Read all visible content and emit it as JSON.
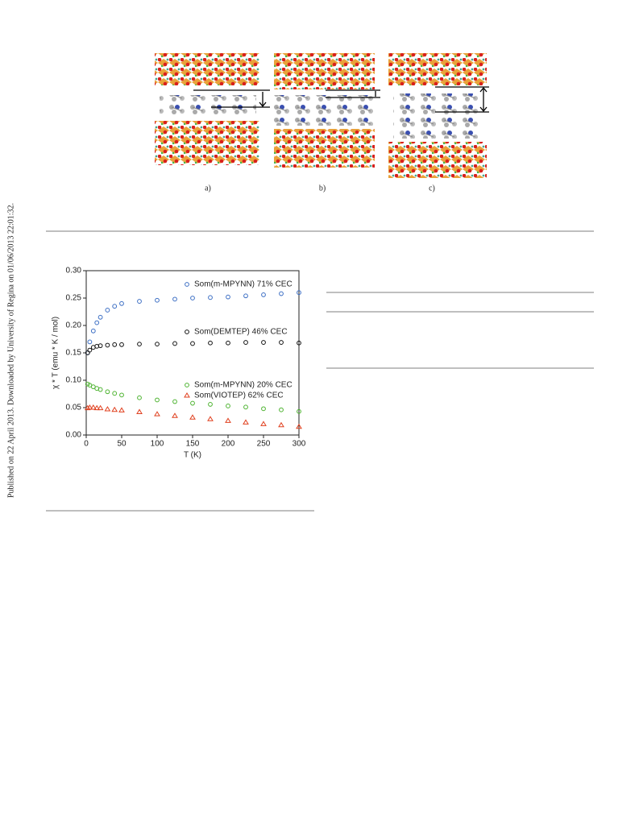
{
  "side_note": "Published on 22 April 2013. Downloaded by University of Regina on 01/06/2013 22:01:32.",
  "figure": {
    "labels": [
      "a)",
      "b)",
      "c)"
    ]
  },
  "chart_data": {
    "type": "scatter",
    "xlabel": "T (K)",
    "ylabel": "χ * T (emu * K / mol)",
    "x": [
      2,
      5,
      10,
      15,
      20,
      30,
      40,
      50,
      75,
      100,
      125,
      150,
      175,
      200,
      225,
      250,
      275,
      300
    ],
    "series": [
      {
        "name": "Som(m-MPYNN) 71% CEC",
        "color": "#3d6fc4",
        "marker": "circle",
        "values": [
          0.15,
          0.17,
          0.19,
          0.205,
          0.215,
          0.228,
          0.235,
          0.24,
          0.244,
          0.246,
          0.248,
          0.25,
          0.251,
          0.252,
          0.254,
          0.256,
          0.258,
          0.26
        ]
      },
      {
        "name": "Som(DEMTEP) 46% CEC",
        "color": "#111111",
        "marker": "circle",
        "values": [
          0.15,
          0.155,
          0.16,
          0.162,
          0.163,
          0.164,
          0.165,
          0.165,
          0.166,
          0.166,
          0.167,
          0.167,
          0.168,
          0.168,
          0.169,
          0.169,
          0.169,
          0.168
        ]
      },
      {
        "name": "Som(m-MPYNN) 20% CEC",
        "color": "#4db330",
        "marker": "circle",
        "values": [
          0.093,
          0.091,
          0.088,
          0.085,
          0.083,
          0.079,
          0.076,
          0.073,
          0.068,
          0.064,
          0.061,
          0.058,
          0.056,
          0.053,
          0.051,
          0.048,
          0.046,
          0.043
        ]
      },
      {
        "name": "Som(VIOTEP) 62% CEC",
        "color": "#e0401f",
        "marker": "triangle",
        "values": [
          0.049,
          0.05,
          0.05,
          0.049,
          0.049,
          0.047,
          0.046,
          0.045,
          0.042,
          0.038,
          0.035,
          0.032,
          0.029,
          0.026,
          0.023,
          0.02,
          0.018,
          0.015
        ]
      }
    ],
    "xlim": [
      0,
      300
    ],
    "xticks": [
      0,
      50,
      100,
      150,
      200,
      250,
      300
    ],
    "ylim": [
      0,
      0.3
    ],
    "yticks": [
      {
        "value": 0,
        "label": "0.00"
      },
      0.05,
      {
        "value": 0.1,
        "label": "0.10"
      },
      0.15,
      {
        "value": 0.2,
        "label": "0.20"
      },
      0.25,
      {
        "value": 0.3,
        "label": "0.30"
      }
    ]
  }
}
